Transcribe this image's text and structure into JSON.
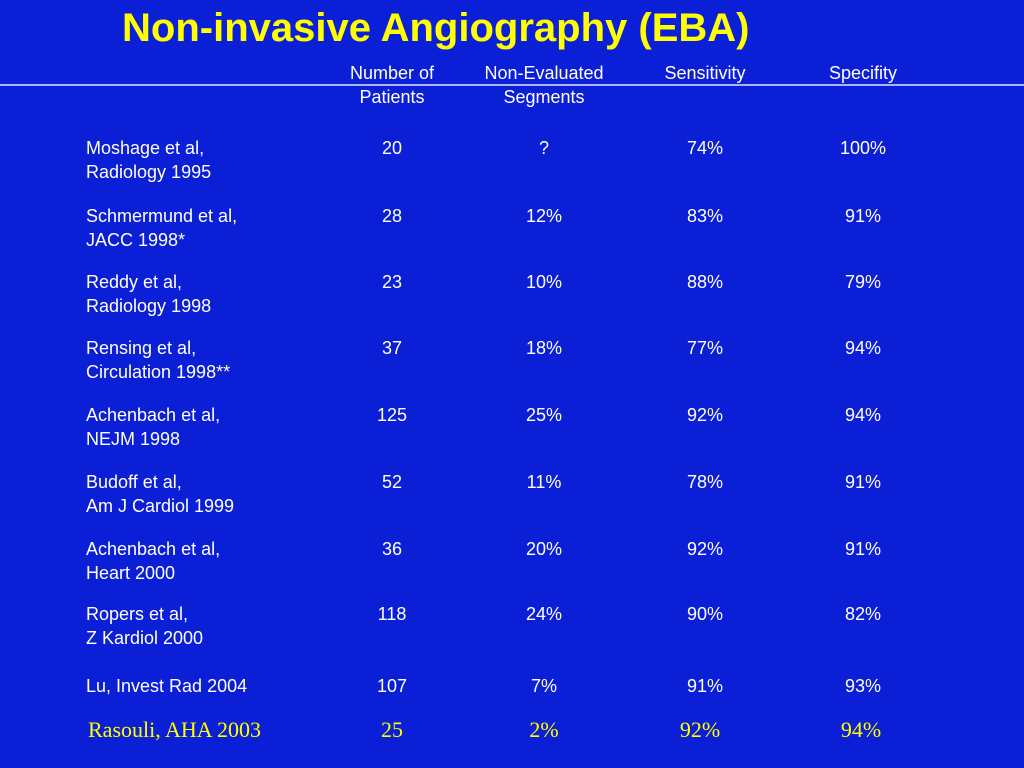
{
  "title": "Non-invasive Angiography (EBA)",
  "headers": {
    "patients": [
      "Number of",
      "Patients"
    ],
    "nonevaluated": [
      "Non-Evaluated",
      "Segments"
    ],
    "sensitivity": "Sensitivity",
    "specificity": "Specifity"
  },
  "rows": [
    {
      "ref": [
        "Moshage et al,",
        "Radiology 1995"
      ],
      "patients": "20",
      "nonevaluated": "?",
      "sensitivity": "74%",
      "specificity": "100%"
    },
    {
      "ref": [
        "Schmermund et al,",
        "JACC 1998*"
      ],
      "patients": "28",
      "nonevaluated": "12%",
      "sensitivity": "83%",
      "specificity": "91%"
    },
    {
      "ref": [
        "Reddy et al,",
        "Radiology 1998"
      ],
      "patients": "23",
      "nonevaluated": "10%",
      "sensitivity": "88%",
      "specificity": "79%"
    },
    {
      "ref": [
        "Rensing et al,",
        "Circulation 1998**"
      ],
      "patients": "37",
      "nonevaluated": "18%",
      "sensitivity": "77%",
      "specificity": "94%"
    },
    {
      "ref": [
        "Achenbach et al,",
        "NEJM 1998"
      ],
      "patients": "125",
      "nonevaluated": "25%",
      "sensitivity": "92%",
      "specificity": "94%"
    },
    {
      "ref": [
        "Budoff et al,",
        "Am J Cardiol 1999"
      ],
      "patients": "52",
      "nonevaluated": "11%",
      "sensitivity": "78%",
      "specificity": "91%"
    },
    {
      "ref": [
        "Achenbach et al,",
        "Heart 2000"
      ],
      "patients": "36",
      "nonevaluated": "20%",
      "sensitivity": "92%",
      "specificity": "91%"
    },
    {
      "ref": [
        "Ropers et al,",
        "Z Kardiol 2000"
      ],
      "patients": "118",
      "nonevaluated": "24%",
      "sensitivity": "90%",
      "specificity": "82%"
    },
    {
      "ref": [
        "Lu, Invest Rad 2004",
        ""
      ],
      "patients": "107",
      "nonevaluated": "7%",
      "sensitivity": "91%",
      "specificity": "93%"
    }
  ],
  "highlight": {
    "ref": "Rasouli, AHA 2003",
    "patients": "25",
    "nonevaluated": "2%",
    "sensitivity": "92%",
    "specificity": "94%"
  },
  "colors": {
    "background": "#0b1fd6",
    "title": "#ffff00",
    "text": "#ffffff",
    "highlight": "#ffff00"
  }
}
